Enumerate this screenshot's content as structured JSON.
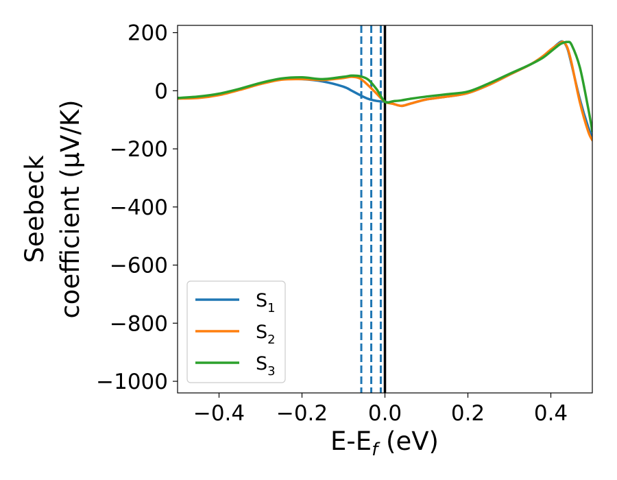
{
  "chart_data": {
    "type": "line",
    "title": "",
    "xlabel": "E-E",
    "xlabel_sub": "f",
    "xlabel_unit": " (eV)",
    "ylabel_line1": "Seebeck",
    "ylabel_line2": "coefficient  (μV/K)",
    "xlim": [
      -0.5,
      0.5
    ],
    "ylim": [
      -1040,
      225
    ],
    "xticks": [
      -0.4,
      -0.2,
      0.0,
      0.2,
      0.4
    ],
    "xtick_labels": [
      "−0.4",
      "−0.2",
      "0.0",
      "0.2",
      "0.4"
    ],
    "yticks": [
      200,
      0,
      -200,
      -400,
      -600,
      -800,
      -1000
    ],
    "ytick_labels": [
      "200",
      "0",
      "−200",
      "−400",
      "−600",
      "−800",
      "−1000"
    ],
    "grid": false,
    "legend_position": "bottom-left",
    "vlines": [
      {
        "x": -0.057,
        "style": "dashed",
        "color": "#1f77b4"
      },
      {
        "x": -0.033,
        "style": "dashed",
        "color": "#1f77b4"
      },
      {
        "x": -0.01,
        "style": "dashed",
        "color": "#1f77b4"
      },
      {
        "x": 0.0,
        "style": "solid",
        "color": "#000000"
      }
    ],
    "series": [
      {
        "name": "S",
        "sub": "1",
        "color": "#1f77b4",
        "x": [
          -0.5,
          -0.45,
          -0.4,
          -0.35,
          -0.3,
          -0.25,
          -0.2,
          -0.15,
          -0.1,
          -0.08,
          -0.06,
          -0.04,
          -0.02,
          0.0,
          0.02,
          0.04,
          0.06,
          0.1,
          0.15,
          0.2,
          0.25,
          0.3,
          0.35,
          0.38,
          0.4,
          0.42,
          0.43,
          0.44,
          0.45,
          0.47,
          0.49,
          0.5
        ],
        "values": [
          -25,
          -22,
          -12,
          5,
          25,
          40,
          40,
          32,
          14,
          0,
          -15,
          -28,
          -35,
          -38,
          -45,
          -52,
          -45,
          -30,
          -20,
          -8,
          20,
          55,
          90,
          115,
          140,
          165,
          168,
          145,
          90,
          -30,
          -125,
          -160
        ]
      },
      {
        "name": "S",
        "sub": "2",
        "color": "#ff7f0e",
        "x": [
          -0.5,
          -0.45,
          -0.4,
          -0.35,
          -0.3,
          -0.25,
          -0.2,
          -0.15,
          -0.1,
          -0.08,
          -0.06,
          -0.04,
          -0.02,
          0.0,
          0.02,
          0.04,
          0.06,
          0.1,
          0.15,
          0.2,
          0.25,
          0.3,
          0.35,
          0.38,
          0.4,
          0.42,
          0.43,
          0.44,
          0.45,
          0.47,
          0.49,
          0.5
        ],
        "values": [
          -27,
          -25,
          -15,
          3,
          23,
          38,
          40,
          37,
          44,
          48,
          42,
          18,
          -10,
          -38,
          -45,
          -52,
          -45,
          -30,
          -20,
          -8,
          20,
          55,
          90,
          118,
          142,
          162,
          168,
          148,
          95,
          -40,
          -140,
          -170
        ]
      },
      {
        "name": "S",
        "sub": "3",
        "color": "#2ca02c",
        "x": [
          -0.5,
          -0.45,
          -0.4,
          -0.35,
          -0.3,
          -0.25,
          -0.2,
          -0.15,
          -0.1,
          -0.08,
          -0.06,
          -0.04,
          -0.02,
          0.0,
          0.02,
          0.04,
          0.06,
          0.1,
          0.15,
          0.2,
          0.25,
          0.3,
          0.35,
          0.38,
          0.4,
          0.42,
          0.43,
          0.44,
          0.45,
          0.47,
          0.49,
          0.5
        ],
        "values": [
          -25,
          -20,
          -10,
          7,
          27,
          42,
          46,
          40,
          48,
          52,
          50,
          38,
          5,
          -38,
          -36,
          -33,
          -28,
          -20,
          -12,
          -3,
          25,
          58,
          90,
          113,
          135,
          158,
          165,
          168,
          158,
          80,
          -60,
          -140
        ]
      }
    ]
  }
}
